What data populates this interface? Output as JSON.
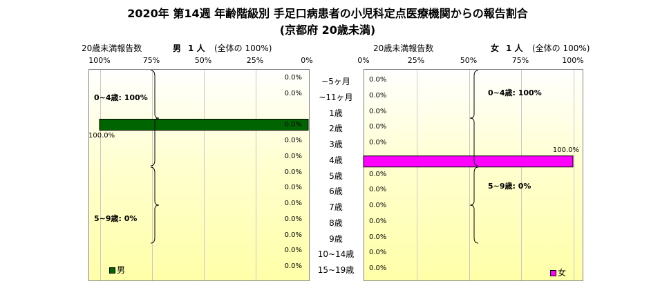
{
  "title": {
    "line1": "2020年 第14週 年齢階級別 手足口病患者の小児科定点医療機関からの報告割合",
    "line2": "(京都府 20歳未満)"
  },
  "colors": {
    "male": "#006400",
    "female": "#ff00ff",
    "border": "#808080"
  },
  "male_panel": {
    "header_count_label": "20歳未満報告数",
    "header_sex": "男",
    "header_count": "1 人",
    "header_total": "(全体の 100%)",
    "ticks": [
      "100%",
      "75%",
      "50%",
      "25%",
      "0%"
    ],
    "groups": [
      "0~4歳: 100%",
      "5~9歳: 0%"
    ],
    "legend": "男"
  },
  "female_panel": {
    "header_count_label": "20歳未満報告数",
    "header_sex": "女",
    "header_count": "1 人",
    "header_total": "(全体の 100%)",
    "ticks": [
      "0%",
      "25%",
      "50%",
      "75%",
      "100%"
    ],
    "groups": [
      "0~4歳: 100%",
      "5~9歳: 0%"
    ],
    "legend": "女"
  },
  "chart_data": {
    "type": "bar",
    "orientation": "horizontal",
    "layout": "population-pyramid",
    "categories": [
      "~5ヶ月",
      "~11ヶ月",
      "1歳",
      "2歳",
      "3歳",
      "4歳",
      "5歳",
      "6歳",
      "7歳",
      "8歳",
      "9歳",
      "10~14歳",
      "15~19歳"
    ],
    "series": [
      {
        "name": "男",
        "values": [
          0,
          0,
          100,
          0,
          0,
          0,
          0,
          0,
          0,
          0,
          0,
          0,
          0
        ],
        "labels": [
          "0.0%",
          "0.0%",
          "100.0%",
          "0.0%",
          "0.0%",
          "0.0%",
          "0.0%",
          "0.0%",
          "0.0%",
          "0.0%",
          "0.0%",
          "0.0%",
          "0.0%"
        ]
      },
      {
        "name": "女",
        "values": [
          0,
          0,
          0,
          0,
          0,
          100,
          0,
          0,
          0,
          0,
          0,
          0,
          0
        ],
        "labels": [
          "0.0%",
          "0.0%",
          "0.0%",
          "0.0%",
          "0.0%",
          "100.0%",
          "0.0%",
          "0.0%",
          "0.0%",
          "0.0%",
          "0.0%",
          "0.0%",
          "0.0%"
        ]
      }
    ],
    "xlim": [
      0,
      100
    ],
    "grid": true,
    "legend_position": "bottom-left / bottom-right"
  }
}
